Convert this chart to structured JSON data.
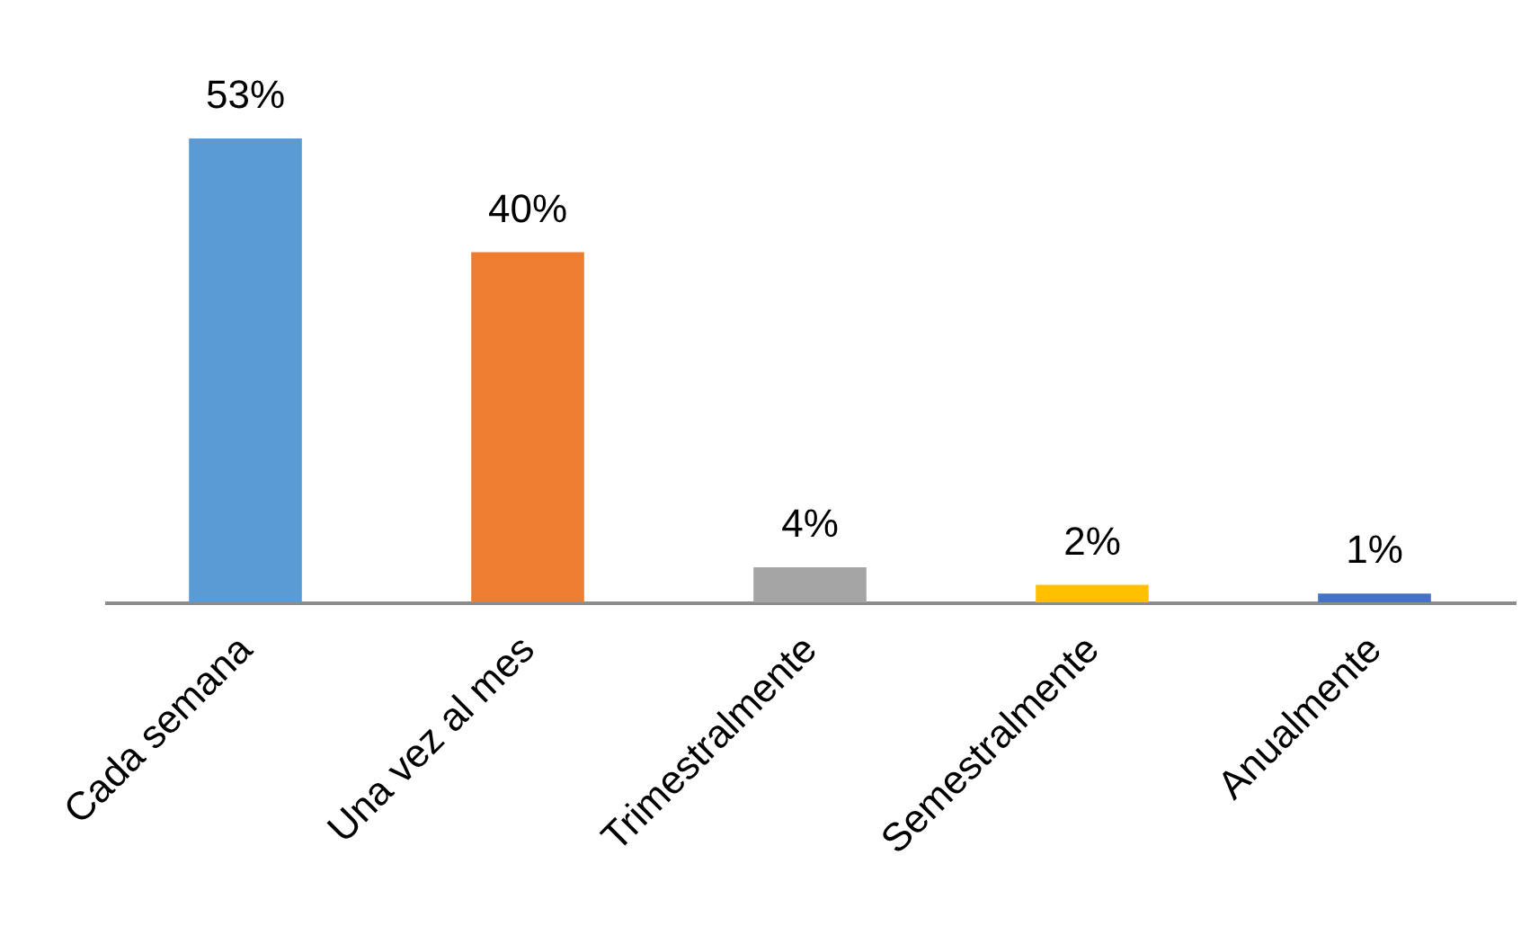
{
  "chart_data": {
    "type": "bar",
    "categories": [
      "Cada semana",
      "Una vez al mes",
      "Trimestralmente",
      "Semestralmente",
      "Anualmente"
    ],
    "values": [
      53,
      40,
      4,
      2,
      1
    ],
    "colors": [
      "#5b9bd5",
      "#ed7d31",
      "#a5a5a5",
      "#ffc000",
      "#4472c4"
    ],
    "value_labels": [
      "53%",
      "40%",
      "4%",
      "2%",
      "1%"
    ],
    "tick_labels": "x"
  }
}
